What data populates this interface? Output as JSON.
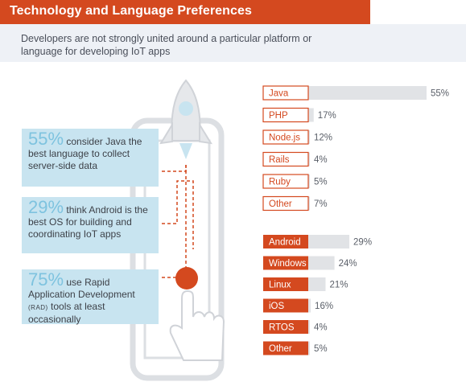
{
  "header": {
    "title": "Technology and Language Preferences"
  },
  "subtitle": "Developers are not strongly united around a particular platform or language for developing IoT apps",
  "stats": [
    {
      "big": "55%",
      "text": " consider Java the best language to collect server-side data"
    },
    {
      "big": "29%",
      "text": " think Android is the best OS for building and coordinating IoT apps"
    },
    {
      "big": "75%",
      "text_before": " use Rapid Application Development ",
      "small": "(RAD)",
      "text_after": " tools at least occasionally"
    }
  ],
  "colors": {
    "accent": "#d4491f",
    "bar": "#e1e3e6",
    "box": "#c8e4f0",
    "big_num": "#7ec3df"
  },
  "chart_data": [
    {
      "type": "bar",
      "orientation": "horizontal",
      "categories": [
        "Java",
        "PHP",
        "Node.js",
        "Rails",
        "Ruby",
        "Other"
      ],
      "values": [
        55,
        17,
        12,
        4,
        5,
        7
      ],
      "value_labels": [
        "55%",
        "17%",
        "12%",
        "4%",
        "5%",
        "7%"
      ],
      "label_style": "outlined"
    },
    {
      "type": "bar",
      "orientation": "horizontal",
      "categories": [
        "Android",
        "Windows",
        "Linux",
        "iOS",
        "RTOS",
        "Other"
      ],
      "values": [
        29,
        24,
        21,
        16,
        4,
        5
      ],
      "value_labels": [
        "29%",
        "24%",
        "21%",
        "16%",
        "4%",
        "5%"
      ],
      "label_style": "filled"
    }
  ]
}
